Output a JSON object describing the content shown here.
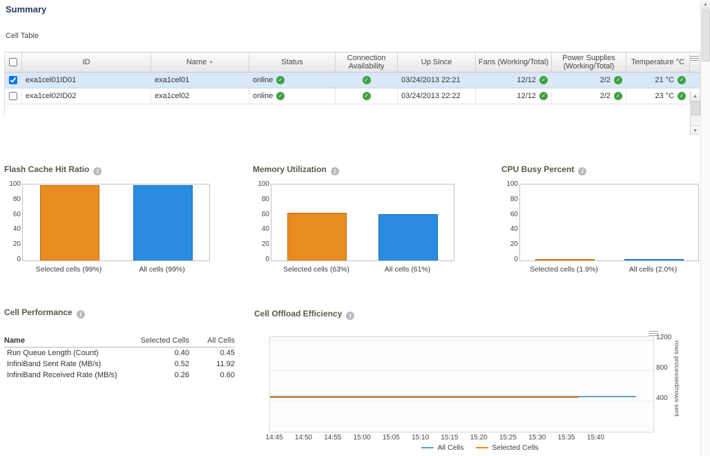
{
  "page": {
    "title": "Summary"
  },
  "icons": {
    "status_ok": "✓",
    "info": "i",
    "sort_asc": "▲",
    "scroll_up": "▲",
    "scroll_down": "▼"
  },
  "colors": {
    "bar_orange": "#E88B20",
    "bar_blue": "#2B8BE0",
    "status_green": "#3fa142",
    "selected_row": "#d9e8f8"
  },
  "cell_table": {
    "label": "Cell Table",
    "columns": {
      "id": "ID",
      "name": "Name",
      "status": "Status",
      "connection": "Connection Availability",
      "up_since": "Up Since",
      "fans": "Fans (Working/Total)",
      "power": "Power Supplies (Working/Total)",
      "temperature": "Temperature °C"
    },
    "rows": [
      {
        "id": "exa1cel01ID01",
        "name": "exa1cel01",
        "status": "online",
        "up_since": "03/24/2013 22:21",
        "fans": "12/12",
        "power_supplies": "2/2",
        "temperature": "21 °C",
        "selected": true
      },
      {
        "id": "exa1cel02ID02",
        "name": "exa1cel02",
        "status": "online",
        "up_since": "03/24/2013 22:22",
        "fans": "12/12",
        "power_supplies": "2/2",
        "temperature": "23 °C",
        "selected": false
      }
    ]
  },
  "bar_axis": {
    "ticks": [
      "100",
      "80",
      "60",
      "40",
      "20",
      "0"
    ]
  },
  "chart_data": [
    {
      "type": "bar",
      "title": "Flash Cache Hit Ratio",
      "categories": [
        "Selected cells (99%)",
        "All cells (99%)"
      ],
      "values": [
        99,
        99
      ],
      "ylim": [
        0,
        100
      ],
      "colors": [
        "#E88B20",
        "#2B8BE0"
      ]
    },
    {
      "type": "bar",
      "title": "Memory Utilization",
      "categories": [
        "Selected cells (63%)",
        "All cells (61%)"
      ],
      "values": [
        63,
        61
      ],
      "ylim": [
        0,
        100
      ],
      "colors": [
        "#E88B20",
        "#2B8BE0"
      ]
    },
    {
      "type": "bar",
      "title": "CPU Busy Percent",
      "categories": [
        "Selected cells (1.9%)",
        "All cells (2.0%)"
      ],
      "values": [
        1.9,
        2.0
      ],
      "ylim": [
        0,
        100
      ],
      "colors": [
        "#E88B20",
        "#2B8BE0"
      ]
    },
    {
      "type": "line",
      "title": "Cell Offload Efficiency",
      "ylabel": "rows processed/rows sent",
      "yticks": [
        "1200",
        "800",
        "400"
      ],
      "ylim": [
        0,
        1250
      ],
      "x": [
        "14:45",
        "14:50",
        "14:55",
        "15:00",
        "15:05",
        "15:10",
        "15:15",
        "15:20",
        "15:25",
        "15:30",
        "15:35",
        "15:40"
      ],
      "series": [
        {
          "name": "All Cells",
          "value": 455,
          "color": "#5B9BD5"
        },
        {
          "name": "Selected Cells",
          "value": 450,
          "color": "#E8871E"
        }
      ],
      "legend_position": "bottom",
      "grid": true
    }
  ],
  "cell_performance": {
    "title": "Cell Performance",
    "columns": [
      "Name",
      "Selected Cells",
      "All Cells"
    ],
    "rows": [
      {
        "name": "Run Queue Length (Count)",
        "selected": "0.40",
        "all": "0.45"
      },
      {
        "name": "InfiniBand Sent Rate (MB/s)",
        "selected": "0.52",
        "all": "11.92"
      },
      {
        "name": "InfiniBand Received Rate (MB/s)",
        "selected": "0.26",
        "all": "0.60"
      }
    ]
  }
}
